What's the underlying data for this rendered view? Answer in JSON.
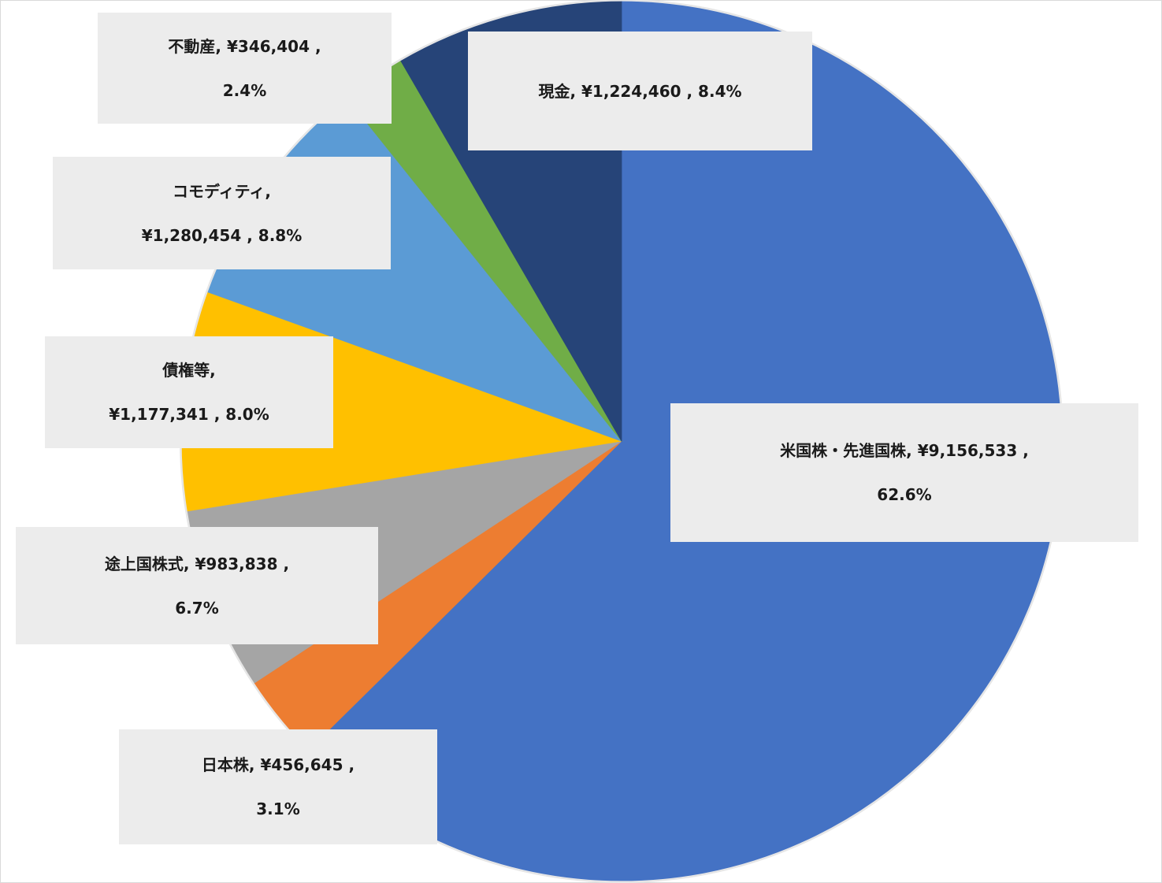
{
  "chart_data": {
    "type": "pie",
    "currency": "¥",
    "start_angle_deg": 0,
    "direction": "clockwise",
    "slices": [
      {
        "name": "米国株・先進国株",
        "value": 9156533,
        "value_label": "¥9,156,533",
        "percent": 62.6,
        "percent_label": "62.6%",
        "color": "#4472c4"
      },
      {
        "name": "日本株",
        "value": 456645,
        "value_label": "¥456,645",
        "percent": 3.1,
        "percent_label": "3.1%",
        "color": "#ed7d31"
      },
      {
        "name": "途上国株式",
        "value": 983838,
        "value_label": "¥983,838",
        "percent": 6.7,
        "percent_label": "6.7%",
        "color": "#a5a5a5"
      },
      {
        "name": "債権等",
        "value": 1177341,
        "value_label": "¥1,177,341",
        "percent": 8.0,
        "percent_label": "8.0%",
        "color": "#ffc000"
      },
      {
        "name": "コモディティ",
        "value": 1280454,
        "value_label": "¥1,280,454",
        "percent": 8.8,
        "percent_label": "8.8%",
        "color": "#5b9bd5"
      },
      {
        "name": "不動産",
        "value": 346404,
        "value_label": "¥346,404",
        "percent": 2.4,
        "percent_label": "2.4%",
        "color": "#70ad47"
      },
      {
        "name": "現金",
        "value": 1224460,
        "value_label": "¥1,224,460",
        "percent": 8.4,
        "percent_label": "8.4%",
        "color": "#264478"
      }
    ],
    "data_labels": [
      {
        "lines": [
          "米国株・先進国株, ¥9,156,533 ,",
          "62.6%"
        ]
      },
      {
        "lines": [
          "日本株, ¥456,645 ,",
          "3.1%"
        ]
      },
      {
        "lines": [
          "途上国株式, ¥983,838 ,",
          "6.7%"
        ]
      },
      {
        "lines": [
          "債権等,",
          "¥1,177,341 , 8.0%"
        ]
      },
      {
        "lines": [
          "コモディティ,",
          "¥1,280,454 , 8.8%"
        ]
      },
      {
        "lines": [
          "不動産, ¥346,404 ,",
          "2.4%"
        ]
      },
      {
        "lines": [
          "現金, ¥1,224,460 , 8.4%"
        ]
      }
    ]
  }
}
